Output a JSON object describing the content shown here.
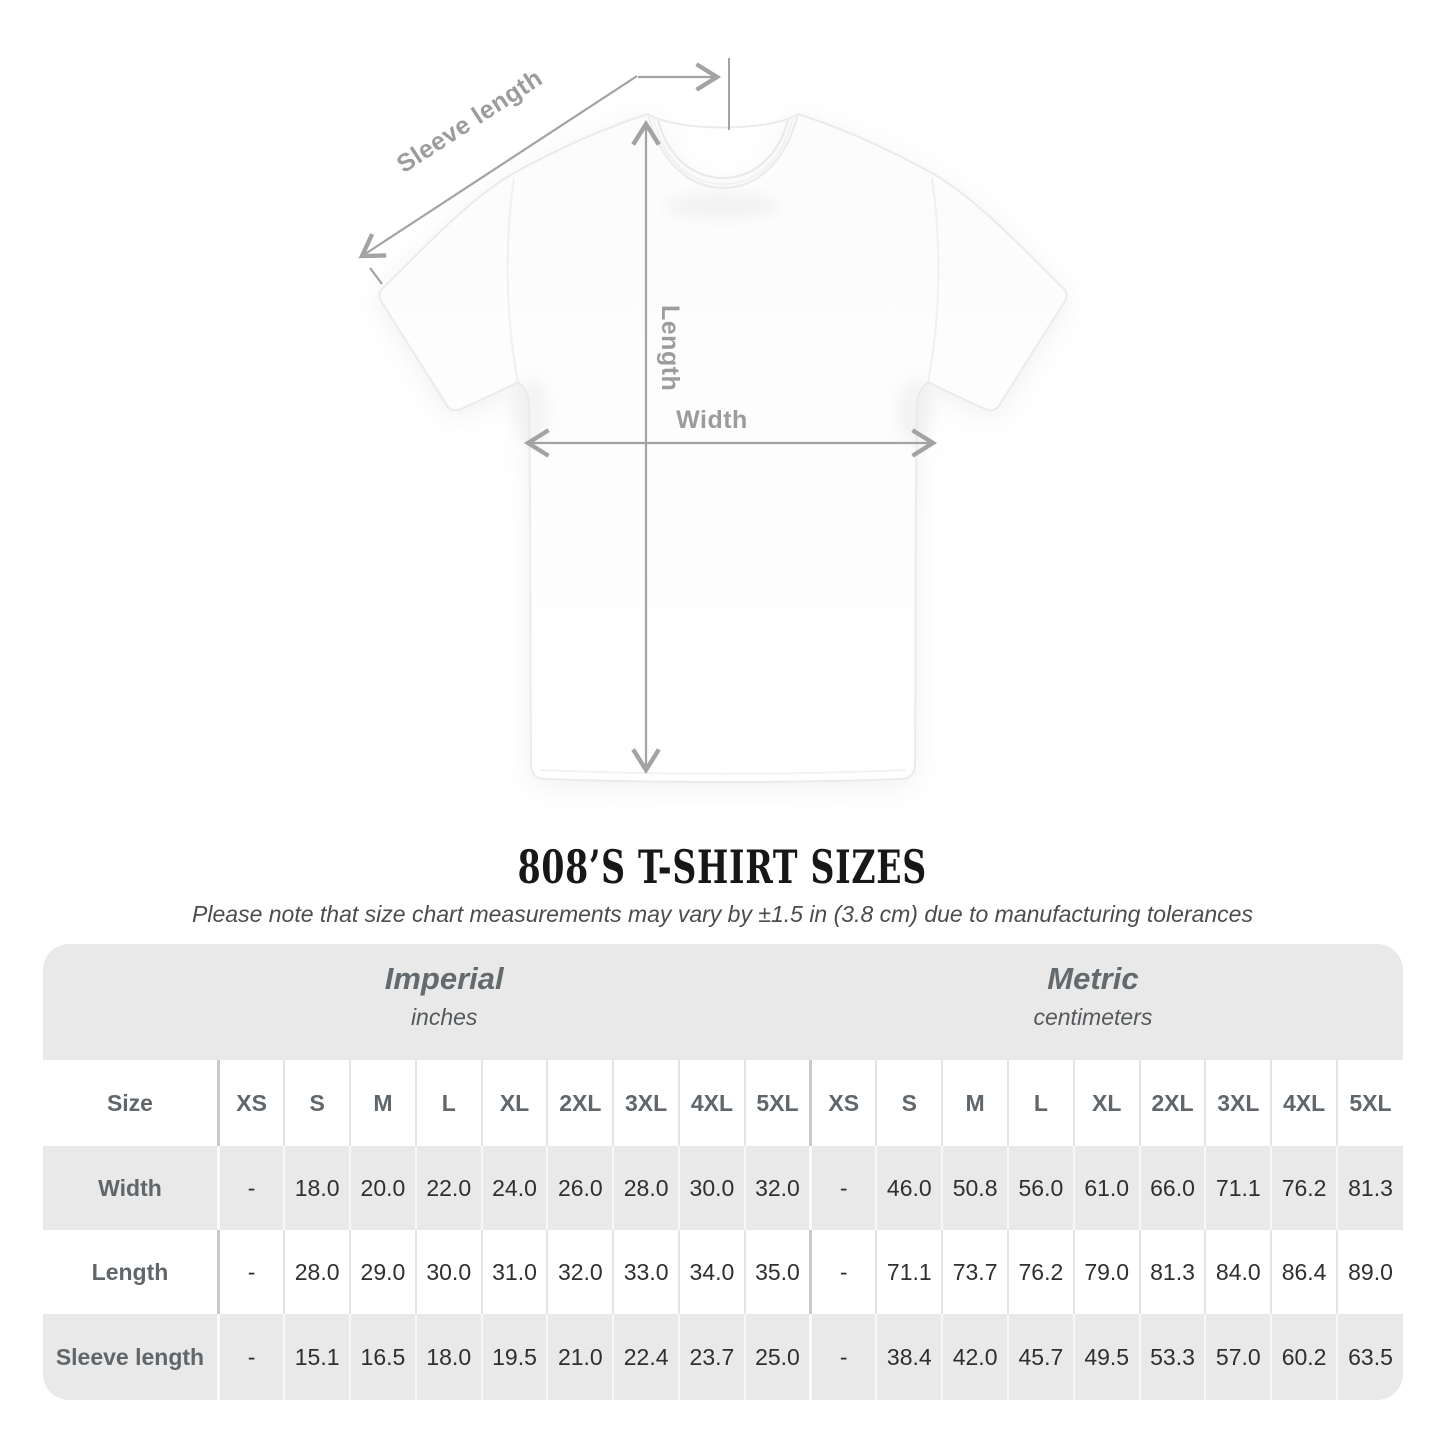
{
  "diagram": {
    "labels": {
      "sleeve_length": "Sleeve length",
      "length": "Length",
      "width": "Width"
    }
  },
  "title": "808’S T-SHIRT SIZES",
  "subtitle": "Please note that size chart measurements may vary by ±1.5 in (3.8 cm) due to manufacturing tolerances",
  "table": {
    "unit_groups": [
      {
        "name": "Imperial",
        "unit": "inches"
      },
      {
        "name": "Metric",
        "unit": "centimeters"
      }
    ],
    "size_header": "Size",
    "sizes": [
      "XS",
      "S",
      "M",
      "L",
      "XL",
      "2XL",
      "3XL",
      "4XL",
      "5XL"
    ],
    "rows": [
      {
        "label": "Width",
        "imperial": [
          "-",
          "18.0",
          "20.0",
          "22.0",
          "24.0",
          "26.0",
          "28.0",
          "30.0",
          "32.0"
        ],
        "metric": [
          "-",
          "46.0",
          "50.8",
          "56.0",
          "61.0",
          "66.0",
          "71.1",
          "76.2",
          "81.3"
        ]
      },
      {
        "label": "Length",
        "imperial": [
          "-",
          "28.0",
          "29.0",
          "30.0",
          "31.0",
          "32.0",
          "33.0",
          "34.0",
          "35.0"
        ],
        "metric": [
          "-",
          "71.1",
          "73.7",
          "76.2",
          "79.0",
          "81.3",
          "84.0",
          "86.4",
          "89.0"
        ]
      },
      {
        "label": "Sleeve length",
        "imperial": [
          "-",
          "15.1",
          "16.5",
          "18.0",
          "19.5",
          "21.0",
          "22.4",
          "23.7",
          "25.0"
        ],
        "metric": [
          "-",
          "38.4",
          "42.0",
          "45.7",
          "49.5",
          "53.3",
          "57.0",
          "60.2",
          "63.5"
        ]
      }
    ]
  },
  "colors": {
    "arrow_gray": "#a3a3a3",
    "label_gray": "#9c9c9c",
    "band_gray": "#e9e9e9",
    "header_text": "#60666a",
    "value_text": "#2f2f2f",
    "title_text": "#171717"
  }
}
